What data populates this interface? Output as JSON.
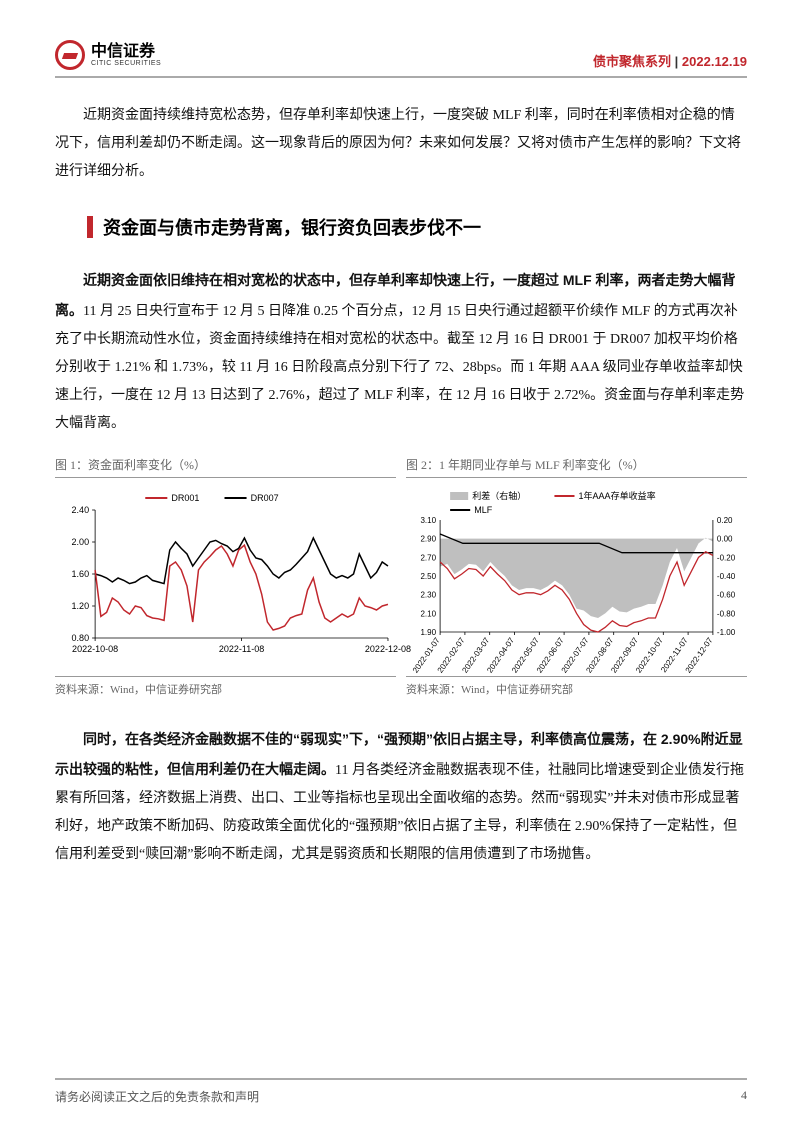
{
  "header": {
    "logo_cn": "中信证券",
    "logo_en": "CITIC SECURITIES",
    "series": "债市聚焦系列",
    "date": "2022.12.19"
  },
  "intro": "近期资金面持续维持宽松态势，但存单利率却快速上行，一度突破 MLF 利率，同时在利率债相对企稳的情况下，信用利差却仍不断走阔。这一现象背后的原因为何？未来如何发展？又将对债市产生怎样的影响？下文将进行详细分析。",
  "section_title": "资金面与债市走势背离，银行资负回表步伐不一",
  "para1": {
    "bold": "近期资金面依旧维持在相对宽松的状态中，但存单利率却快速上行，一度超过 MLF 利率，两者走势大幅背离。",
    "rest": "11 月 25 日央行宣布于 12 月 5 日降准 0.25 个百分点，12 月 15 日央行通过超额平价续作 MLF 的方式再次补充了中长期流动性水位，资金面持续维持在相对宽松的状态中。截至 12 月 16 日 DR001 于 DR007 加权平均价格分别收于 1.21% 和 1.73%，较 11 月 16 日阶段高点分别下行了 72、28bps。而 1 年期 AAA 级同业存单收益率却快速上行，一度在 12 月 13 日达到了 2.76%，超过了 MLF 利率，在 12 月 16 日收于 2.72%。资金面与存单利率走势大幅背离。"
  },
  "chart1": {
    "title": "图 1：资金面利率变化（%）",
    "source": "资料来源：Wind，中信证券研究部",
    "type": "line",
    "legend": [
      {
        "label": "DR001",
        "color": "#c1272d"
      },
      {
        "label": "DR007",
        "color": "#000000"
      }
    ],
    "x_ticks": [
      "2022-10-08",
      "2022-11-08",
      "2022-12-08"
    ],
    "y_ticks": [
      0.8,
      1.2,
      1.6,
      2.0,
      2.4
    ],
    "ylim": [
      0.8,
      2.4
    ],
    "line_width": 1.5,
    "background_color": "#ffffff",
    "tick_font_size": 9,
    "legend_font_size": 9,
    "dr001": [
      1.65,
      1.07,
      1.12,
      1.3,
      1.25,
      1.15,
      1.1,
      1.2,
      1.18,
      1.08,
      1.05,
      1.04,
      1.02,
      1.7,
      1.75,
      1.65,
      1.45,
      1.0,
      1.65,
      1.75,
      1.82,
      1.9,
      1.95,
      1.85,
      1.7,
      1.9,
      1.96,
      1.75,
      1.6,
      1.35,
      1.0,
      0.9,
      0.92,
      0.95,
      1.05,
      1.08,
      1.1,
      1.4,
      1.55,
      1.25,
      1.05,
      1.0,
      1.05,
      1.1,
      1.06,
      1.1,
      1.3,
      1.2,
      1.18,
      1.15,
      1.2,
      1.22
    ],
    "dr007": [
      1.6,
      1.58,
      1.55,
      1.5,
      1.55,
      1.52,
      1.48,
      1.5,
      1.55,
      1.58,
      1.52,
      1.5,
      1.48,
      1.9,
      2.0,
      1.92,
      1.85,
      1.7,
      1.8,
      1.9,
      2.0,
      2.02,
      1.98,
      1.95,
      1.88,
      1.92,
      2.05,
      1.9,
      1.8,
      1.78,
      1.7,
      1.6,
      1.55,
      1.62,
      1.65,
      1.72,
      1.8,
      1.88,
      2.05,
      1.9,
      1.75,
      1.6,
      1.55,
      1.58,
      1.55,
      1.6,
      1.85,
      1.7,
      1.55,
      1.62,
      1.75,
      1.7
    ]
  },
  "chart2": {
    "title": "图 2：1 年期同业存单与 MLF 利率变化（%）",
    "source": "资料来源：Wind，中信证券研究部",
    "type": "line-area",
    "legend": [
      {
        "label": "利差（右轴）",
        "color": "#bfbfbf",
        "shape": "rect"
      },
      {
        "label": "1年AAA存单收益率",
        "color": "#c1272d",
        "shape": "line"
      },
      {
        "label": "MLF",
        "color": "#000000",
        "shape": "line"
      }
    ],
    "x_ticks": [
      "2022-01-07",
      "2022-02-07",
      "2022-03-07",
      "2022-04-07",
      "2022-05-07",
      "2022-06-07",
      "2022-07-07",
      "2022-08-07",
      "2022-09-07",
      "2022-10-07",
      "2022-11-07",
      "2022-12-07"
    ],
    "y_left_ticks": [
      1.9,
      2.1,
      2.3,
      2.5,
      2.7,
      2.9,
      3.1
    ],
    "y_left_lim": [
      1.9,
      3.1
    ],
    "y_right_ticks": [
      -1.0,
      -0.8,
      -0.6,
      -0.4,
      -0.2,
      0.0,
      0.2
    ],
    "y_right_lim": [
      -1.0,
      0.2
    ],
    "line_width": 1.3,
    "background_color": "#ffffff",
    "tick_font_size": 8,
    "legend_font_size": 9,
    "mlf": [
      2.95,
      2.85,
      2.85,
      2.85,
      2.85,
      2.85,
      2.85,
      2.85,
      2.75,
      2.75,
      2.75,
      2.75,
      2.75
    ],
    "aaa": [
      2.65,
      2.58,
      2.47,
      2.52,
      2.58,
      2.57,
      2.5,
      2.6,
      2.52,
      2.45,
      2.35,
      2.3,
      2.32,
      2.32,
      2.3,
      2.34,
      2.4,
      2.35,
      2.25,
      2.1,
      1.98,
      1.92,
      1.9,
      1.95,
      2.02,
      1.97,
      1.96,
      2.0,
      2.02,
      2.05,
      2.05,
      2.25,
      2.5,
      2.65,
      2.4,
      2.55,
      2.7,
      2.76,
      2.72
    ],
    "spread": [
      -0.3,
      -0.27,
      -0.38,
      -0.33,
      -0.27,
      -0.28,
      -0.35,
      -0.25,
      -0.33,
      -0.4,
      -0.5,
      -0.55,
      -0.53,
      -0.53,
      -0.55,
      -0.51,
      -0.45,
      -0.5,
      -0.6,
      -0.75,
      -0.77,
      -0.83,
      -0.85,
      -0.8,
      -0.73,
      -0.78,
      -0.79,
      -0.75,
      -0.73,
      -0.7,
      -0.7,
      -0.5,
      -0.25,
      -0.1,
      -0.35,
      -0.2,
      -0.05,
      0.01,
      -0.03
    ]
  },
  "para2": {
    "bold": "同时，在各类经济金融数据不佳的“弱现实”下，“强预期”依旧占据主导，利率债高位震荡，在 2.90%附近显示出较强的粘性，但信用利差仍在大幅走阔。",
    "rest": "11 月各类经济金融数据表现不佳，社融同比增速受到企业债发行拖累有所回落，经济数据上消费、出口、工业等指标也呈现出全面收缩的态势。然而“弱现实”并未对债市形成显著利好，地产政策不断加码、防疫政策全面优化的“强预期”依旧占据了主导，利率债在 2.90%保持了一定粘性，但信用利差受到“赎回潮”影响不断走阔，尤其是弱资质和长期限的信用债遭到了市场抛售。"
  },
  "footer": {
    "disclaimer": "请务必阅读正文之后的免责条款和声明",
    "page": "4"
  }
}
